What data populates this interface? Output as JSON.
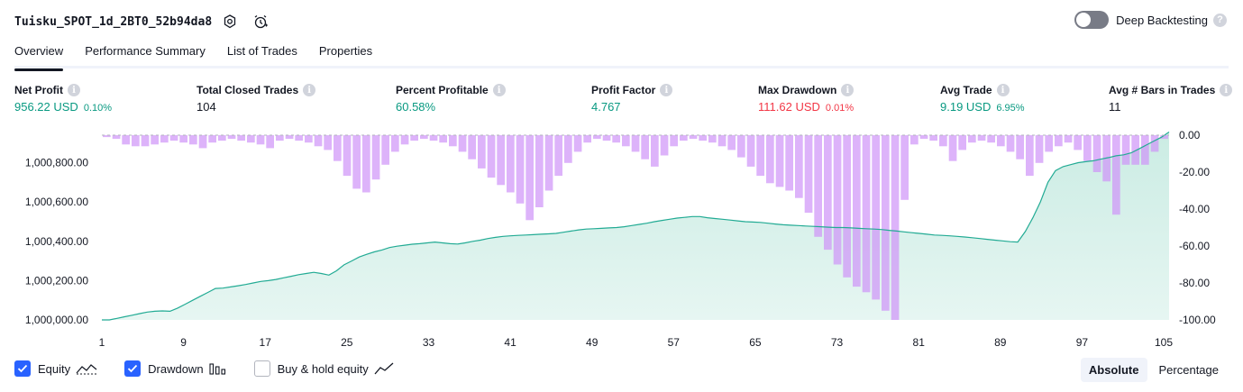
{
  "header": {
    "title": "Tuisku_SPOT_1d_2BT0_52b94da8",
    "deep_backtesting_label": "Deep Backtesting",
    "deep_backtesting_enabled": false
  },
  "tabs": [
    {
      "label": "Overview",
      "active": true
    },
    {
      "label": "Performance Summary",
      "active": false
    },
    {
      "label": "List of Trades",
      "active": false
    },
    {
      "label": "Properties",
      "active": false
    }
  ],
  "metrics": {
    "net_profit": {
      "label": "Net Profit",
      "value": "956.22 USD",
      "sub": "0.10%"
    },
    "total_closed_trades": {
      "label": "Total Closed Trades",
      "value": "104"
    },
    "percent_profitable": {
      "label": "Percent Profitable",
      "value": "60.58%"
    },
    "profit_factor": {
      "label": "Profit Factor",
      "value": "4.767"
    },
    "max_drawdown": {
      "label": "Max Drawdown",
      "value": "111.62 USD",
      "sub": "0.01%"
    },
    "avg_trade": {
      "label": "Avg Trade",
      "value": "9.19 USD",
      "sub": "6.95%"
    },
    "avg_bars": {
      "label": "Avg # Bars in Trades",
      "value": "11"
    }
  },
  "legend": {
    "equity": "Equity",
    "drawdown": "Drawdown",
    "buy_hold": "Buy & hold equity",
    "equity_checked": true,
    "drawdown_checked": true,
    "buy_hold_checked": false
  },
  "modes": {
    "absolute": "Absolute",
    "percentage": "Percentage",
    "active": "Absolute"
  },
  "colors": {
    "accent": "#2962ff",
    "profit_green": "#089981",
    "loss_red": "#f23645",
    "equity_line": "#22ab94",
    "equity_fill": "#c8ebe2",
    "drawdown_bar": "#ce93f8"
  },
  "chart_data": {
    "type": "area",
    "x_tick_labels": [
      "1",
      "9",
      "17",
      "25",
      "33",
      "41",
      "49",
      "57",
      "65",
      "73",
      "81",
      "89",
      "97",
      "105"
    ],
    "x_range": [
      1,
      105
    ],
    "left_axis": {
      "ticks": [
        "1,000,000.00",
        "1,000,200.00",
        "1,000,400.00",
        "1,000,600.00",
        "1,000,800.00"
      ],
      "range": [
        1000000,
        1000940
      ]
    },
    "right_axis": {
      "ticks": [
        "0.00",
        "-20.00",
        "-40.00",
        "-60.00",
        "-80.00",
        "-100.00"
      ],
      "range": [
        -100,
        0
      ]
    },
    "series": [
      {
        "name": "Equity",
        "axis": "left",
        "values": [
          0,
          0,
          8,
          16,
          24,
          32,
          40,
          44,
          46,
          44,
          60,
          80,
          100,
          120,
          140,
          160,
          162,
          168,
          174,
          180,
          188,
          196,
          200,
          206,
          214,
          222,
          230,
          236,
          242,
          236,
          228,
          250,
          280,
          300,
          320,
          334,
          346,
          356,
          368,
          375,
          380,
          385,
          388,
          392,
          396,
          392,
          388,
          386,
          392,
          400,
          406,
          414,
          420,
          425,
          428,
          430,
          432,
          434,
          436,
          438,
          440,
          446,
          452,
          458,
          462,
          464,
          466,
          468,
          470,
          474,
          480,
          486,
          492,
          500,
          506,
          512,
          518,
          522,
          526,
          526,
          520,
          516,
          512,
          508,
          504,
          500,
          498,
          496,
          492,
          488,
          484,
          482,
          480,
          478,
          476,
          474,
          472,
          470,
          470,
          468,
          466,
          464,
          462,
          460,
          456,
          452,
          448,
          444,
          440,
          436,
          432,
          430,
          428,
          425,
          422,
          418,
          414,
          410,
          406,
          402,
          398,
          396,
          450,
          520,
          600,
          700,
          760,
          780,
          790,
          800,
          805,
          810,
          818,
          826,
          835,
          840,
          850,
          870,
          890,
          910,
          930,
          956
        ]
      },
      {
        "name": "Drawdown",
        "axis": "right",
        "values": [
          -1,
          -2,
          -5,
          -6,
          -6,
          -5,
          -4,
          -3,
          -4,
          -5,
          -7,
          -4,
          -3,
          -2,
          -3,
          -4,
          -5,
          -7,
          -3,
          -2,
          -3,
          -4,
          -6,
          -8,
          -14,
          -22,
          -29,
          -31,
          -24,
          -16,
          -9,
          -5,
          -3,
          -2,
          -3,
          -4,
          -6,
          -9,
          -13,
          -18,
          -23,
          -27,
          -31,
          -37,
          -46,
          -39,
          -30,
          -22,
          -15,
          -9,
          -4,
          -2,
          -3,
          -4,
          -6,
          -9,
          -13,
          -17,
          -11,
          -6,
          -3,
          -2,
          -3,
          -4,
          -6,
          -8,
          -12,
          -17,
          -22,
          -26,
          -28,
          -30,
          -34,
          -42,
          -55,
          -62,
          -70,
          -77,
          -82,
          -85,
          -89,
          -95,
          -100,
          -35,
          -5,
          -2,
          -3,
          -6,
          -14,
          -8,
          -4,
          -3,
          -4,
          -6,
          -9,
          -13,
          -22,
          -15,
          -9,
          -6,
          -4,
          -8,
          -14,
          -20,
          -25,
          -43,
          -16,
          -16,
          -16,
          -9,
          -2
        ]
      }
    ],
    "xlabel": "",
    "ylabel": "",
    "grid": false
  }
}
